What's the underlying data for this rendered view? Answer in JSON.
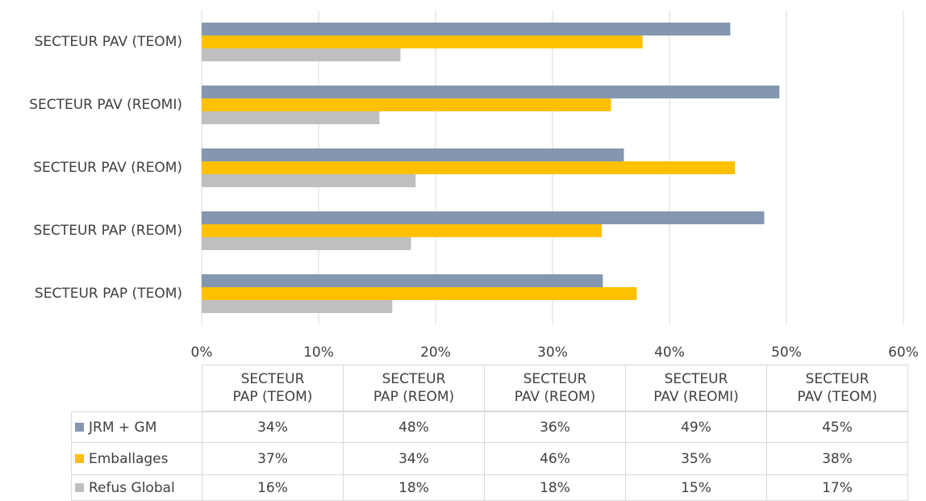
{
  "chart_data": {
    "type": "bar",
    "orientation": "horizontal",
    "categories": [
      "SECTEUR PAP (TEOM)",
      "SECTEUR PAP (REOM)",
      "SECTEUR PAV (REOM)",
      "SECTEUR PAV (REOMI)",
      "SECTEUR PAV (TEOM)"
    ],
    "series": [
      {
        "name": "JRM + GM",
        "color": "#8497b0",
        "values": [
          34.3,
          48.1,
          36.1,
          49.4,
          45.2
        ],
        "value_labels": [
          "34%",
          "48%",
          "36%",
          "49%",
          "45%"
        ]
      },
      {
        "name": "Emballages",
        "color": "#ffc000",
        "values": [
          37.2,
          34.2,
          45.6,
          35.0,
          37.7
        ],
        "value_labels": [
          "37%",
          "34%",
          "46%",
          "35%",
          "38%"
        ]
      },
      {
        "name": "Refus Global",
        "color": "#bfbfbf",
        "values": [
          16.3,
          17.9,
          18.3,
          15.2,
          17.0
        ],
        "value_labels": [
          "16%",
          "18%",
          "18%",
          "15%",
          "17%"
        ]
      }
    ],
    "xlim": [
      0,
      60
    ],
    "xticks": [
      {
        "value": 0,
        "label": "0%"
      },
      {
        "value": 10,
        "label": "10%"
      },
      {
        "value": 20,
        "label": "20%"
      },
      {
        "value": 30,
        "label": "30%"
      },
      {
        "value": 40,
        "label": "40%"
      },
      {
        "value": 50,
        "label": "50%"
      },
      {
        "value": 60,
        "label": "60%"
      }
    ],
    "grid": true,
    "data_table": true
  }
}
